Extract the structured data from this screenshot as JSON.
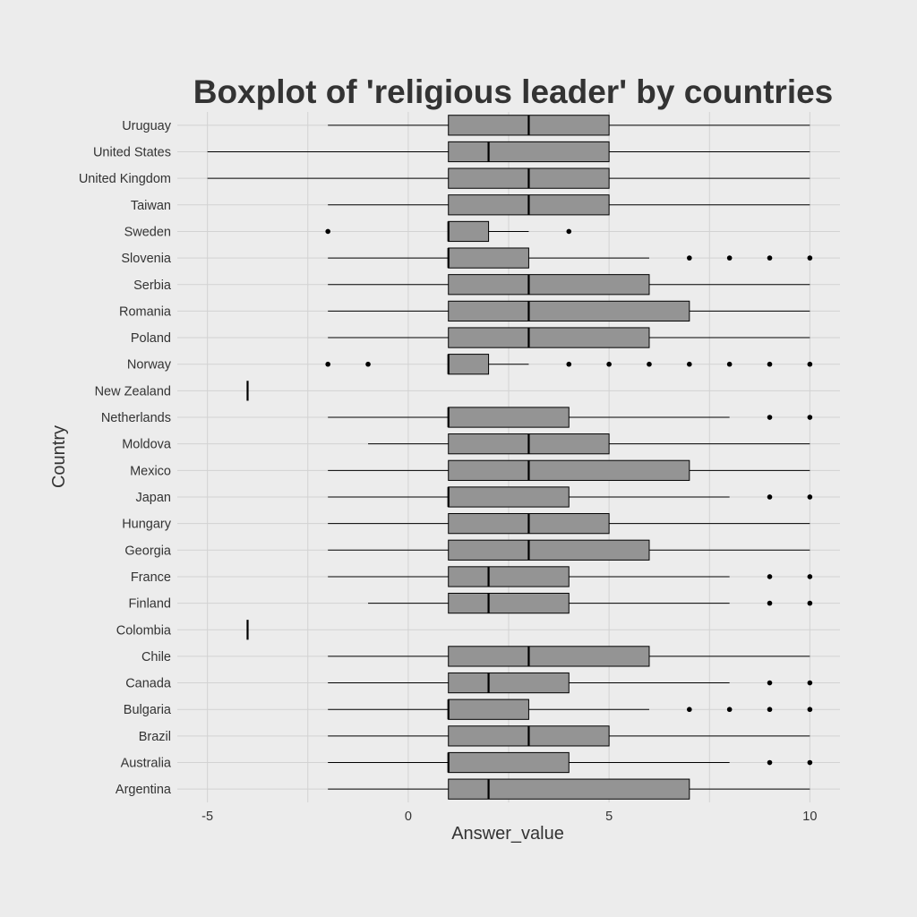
{
  "chart_data": {
    "type": "boxplot",
    "title": "Boxplot of 'religious leader' by countries",
    "xlabel": "Answer_value",
    "ylabel": "Country",
    "xlim": [
      -5.75,
      10.75
    ],
    "x_ticks": [
      {
        "value": -5,
        "label": "-5"
      },
      {
        "value": 0,
        "label": "0"
      },
      {
        "value": 5,
        "label": "5"
      },
      {
        "value": 10,
        "label": "10"
      }
    ],
    "grid": true,
    "orientation": "horizontal",
    "colors": {
      "background": "#ececec",
      "box": "#949494",
      "grid": "#d2d2d2",
      "text": "#333333"
    },
    "series": [
      {
        "category": "Uruguay",
        "whisker_low": -2,
        "q1": 1,
        "median": 3,
        "q3": 5,
        "whisker_high": 10,
        "outliers": []
      },
      {
        "category": "United States",
        "whisker_low": -5,
        "q1": 1,
        "median": 2,
        "q3": 5,
        "whisker_high": 10,
        "outliers": []
      },
      {
        "category": "United Kingdom",
        "whisker_low": -5,
        "q1": 1,
        "median": 3,
        "q3": 5,
        "whisker_high": 10,
        "outliers": []
      },
      {
        "category": "Taiwan",
        "whisker_low": -2,
        "q1": 1,
        "median": 3,
        "q3": 5,
        "whisker_high": 10,
        "outliers": []
      },
      {
        "category": "Sweden",
        "whisker_low": 1,
        "q1": 1,
        "median": 1,
        "q3": 2,
        "whisker_high": 3,
        "outliers": [
          -2,
          4
        ]
      },
      {
        "category": "Slovenia",
        "whisker_low": -2,
        "q1": 1,
        "median": 1,
        "q3": 3,
        "whisker_high": 6,
        "outliers": [
          7,
          8,
          9,
          10
        ]
      },
      {
        "category": "Serbia",
        "whisker_low": -2,
        "q1": 1,
        "median": 3,
        "q3": 6,
        "whisker_high": 10,
        "outliers": []
      },
      {
        "category": "Romania",
        "whisker_low": -2,
        "q1": 1,
        "median": 3,
        "q3": 7,
        "whisker_high": 10,
        "outliers": []
      },
      {
        "category": "Poland",
        "whisker_low": -2,
        "q1": 1,
        "median": 3,
        "q3": 6,
        "whisker_high": 10,
        "outliers": []
      },
      {
        "category": "Norway",
        "whisker_low": 1,
        "q1": 1,
        "median": 1,
        "q3": 2,
        "whisker_high": 3,
        "outliers": [
          -2,
          -1,
          4,
          5,
          6,
          7,
          8,
          9,
          10
        ]
      },
      {
        "category": "New Zealand",
        "whisker_low": -4,
        "q1": -4,
        "median": -4,
        "q3": -4,
        "whisker_high": -4,
        "outliers": []
      },
      {
        "category": "Netherlands",
        "whisker_low": -2,
        "q1": 1,
        "median": 1,
        "q3": 4,
        "whisker_high": 8,
        "outliers": [
          9,
          10
        ]
      },
      {
        "category": "Moldova",
        "whisker_low": -1,
        "q1": 1,
        "median": 3,
        "q3": 5,
        "whisker_high": 10,
        "outliers": []
      },
      {
        "category": "Mexico",
        "whisker_low": -2,
        "q1": 1,
        "median": 3,
        "q3": 7,
        "whisker_high": 10,
        "outliers": []
      },
      {
        "category": "Japan",
        "whisker_low": -2,
        "q1": 1,
        "median": 1,
        "q3": 4,
        "whisker_high": 8,
        "outliers": [
          9,
          10
        ]
      },
      {
        "category": "Hungary",
        "whisker_low": -2,
        "q1": 1,
        "median": 3,
        "q3": 5,
        "whisker_high": 10,
        "outliers": []
      },
      {
        "category": "Georgia",
        "whisker_low": -2,
        "q1": 1,
        "median": 3,
        "q3": 6,
        "whisker_high": 10,
        "outliers": []
      },
      {
        "category": "France",
        "whisker_low": -2,
        "q1": 1,
        "median": 2,
        "q3": 4,
        "whisker_high": 8,
        "outliers": [
          9,
          10
        ]
      },
      {
        "category": "Finland",
        "whisker_low": -1,
        "q1": 1,
        "median": 2,
        "q3": 4,
        "whisker_high": 8,
        "outliers": [
          9,
          10
        ]
      },
      {
        "category": "Colombia",
        "whisker_low": -4,
        "q1": -4,
        "median": -4,
        "q3": -4,
        "whisker_high": -4,
        "outliers": []
      },
      {
        "category": "Chile",
        "whisker_low": -2,
        "q1": 1,
        "median": 3,
        "q3": 6,
        "whisker_high": 10,
        "outliers": []
      },
      {
        "category": "Canada",
        "whisker_low": -2,
        "q1": 1,
        "median": 2,
        "q3": 4,
        "whisker_high": 8,
        "outliers": [
          9,
          10
        ]
      },
      {
        "category": "Bulgaria",
        "whisker_low": -2,
        "q1": 1,
        "median": 1,
        "q3": 3,
        "whisker_high": 6,
        "outliers": [
          7,
          8,
          9,
          10
        ]
      },
      {
        "category": "Brazil",
        "whisker_low": -2,
        "q1": 1,
        "median": 3,
        "q3": 5,
        "whisker_high": 10,
        "outliers": []
      },
      {
        "category": "Australia",
        "whisker_low": -2,
        "q1": 1,
        "median": 1,
        "q3": 4,
        "whisker_high": 8,
        "outliers": [
          9,
          10
        ]
      },
      {
        "category": "Argentina",
        "whisker_low": -2,
        "q1": 1,
        "median": 2,
        "q3": 7,
        "whisker_high": 10,
        "outliers": []
      }
    ]
  }
}
